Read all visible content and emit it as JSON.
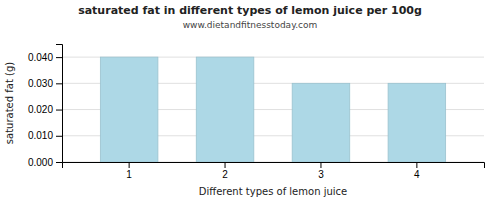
{
  "chart_data": {
    "type": "bar",
    "title": "saturated fat in different types of lemon juice per 100g",
    "subtitle": "www.dietandfitnesstoday.com",
    "xlabel": "Different types of lemon juice",
    "ylabel": "saturated fat (g)",
    "categories": [
      "1",
      "2",
      "3",
      "4"
    ],
    "values": [
      0.04,
      0.04,
      0.03,
      0.03
    ],
    "color": "#add8e6",
    "ylim": [
      0,
      0.045
    ],
    "yticks": [
      {
        "value": 0.0,
        "label": "0.000"
      },
      {
        "value": 0.01,
        "label": "0.010"
      },
      {
        "value": 0.02,
        "label": "0.020"
      },
      {
        "value": 0.03,
        "label": "0.030"
      },
      {
        "value": 0.04,
        "label": "0.040"
      }
    ],
    "grid": true
  }
}
